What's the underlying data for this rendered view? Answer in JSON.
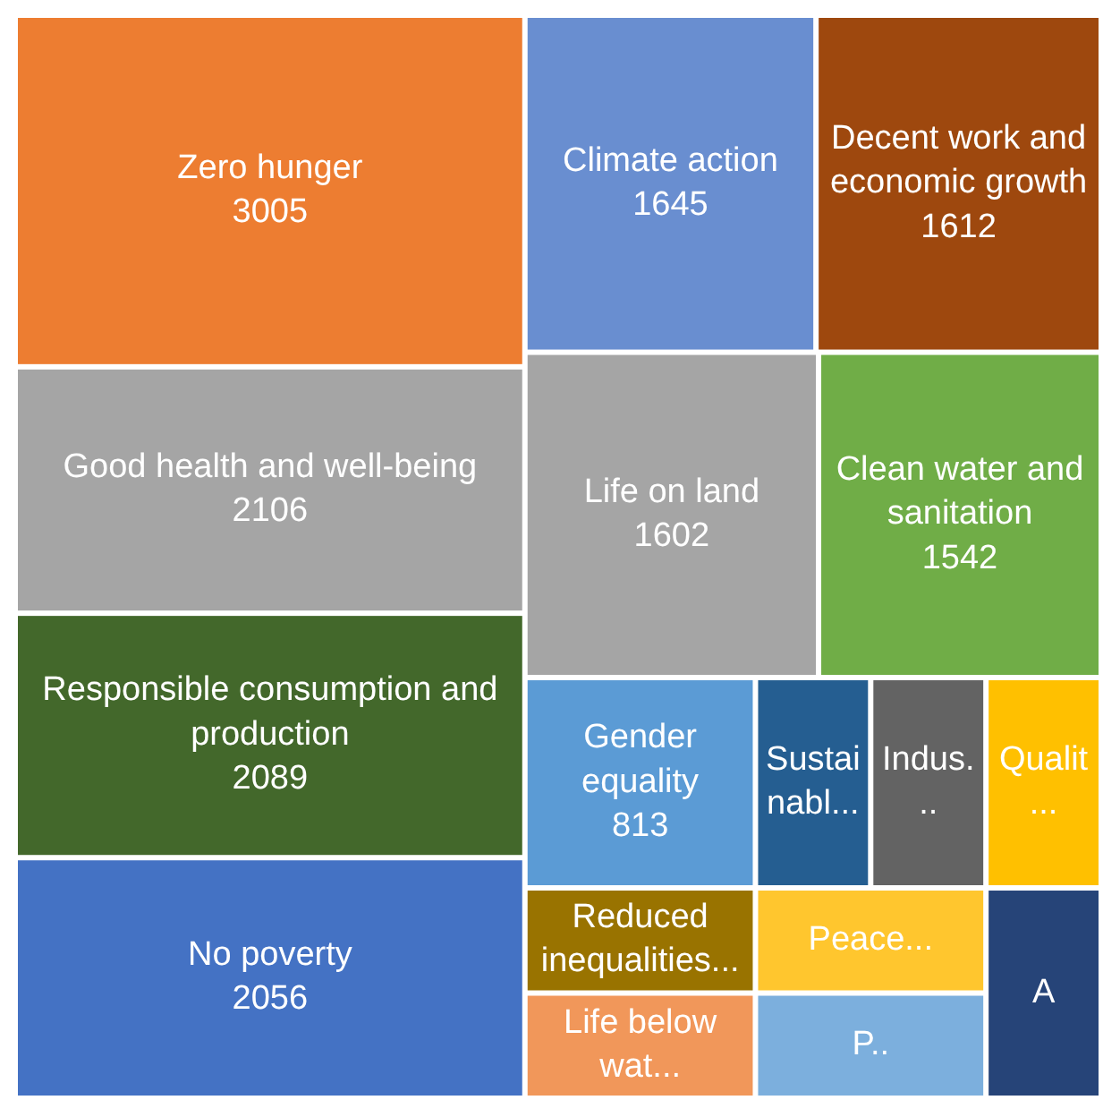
{
  "chart_data": {
    "type": "other",
    "categories": [
      "Zero hunger",
      "Good health and well-being",
      "Responsible consumption and production",
      "No poverty",
      "Climate action",
      "Decent work and economic growth",
      "Life on land",
      "Clean water and sanitation",
      "Gender equality",
      "Reduced inequalities...",
      "Life below wat...",
      "Sustainabl...",
      "Indus...",
      "Qualit...",
      "Peace...",
      "P..",
      "A"
    ],
    "values": [
      3005,
      2106,
      2089,
      2056,
      1645,
      1612,
      1602,
      1542,
      813,
      null,
      null,
      null,
      null,
      null,
      null,
      null,
      null
    ],
    "colors": [
      "#ed7d31",
      "#a5a5a5",
      "#43682b",
      "#4472c4",
      "#698ed0",
      "#9e480e",
      "#a5a5a5",
      "#70ad47",
      "#5b9bd5",
      "#997300",
      "#f1975a",
      "#255e91",
      "#636363",
      "#ffc000",
      "#ffc62e",
      "#7cafdd",
      "#264478"
    ],
    "data_labels": true
  }
}
